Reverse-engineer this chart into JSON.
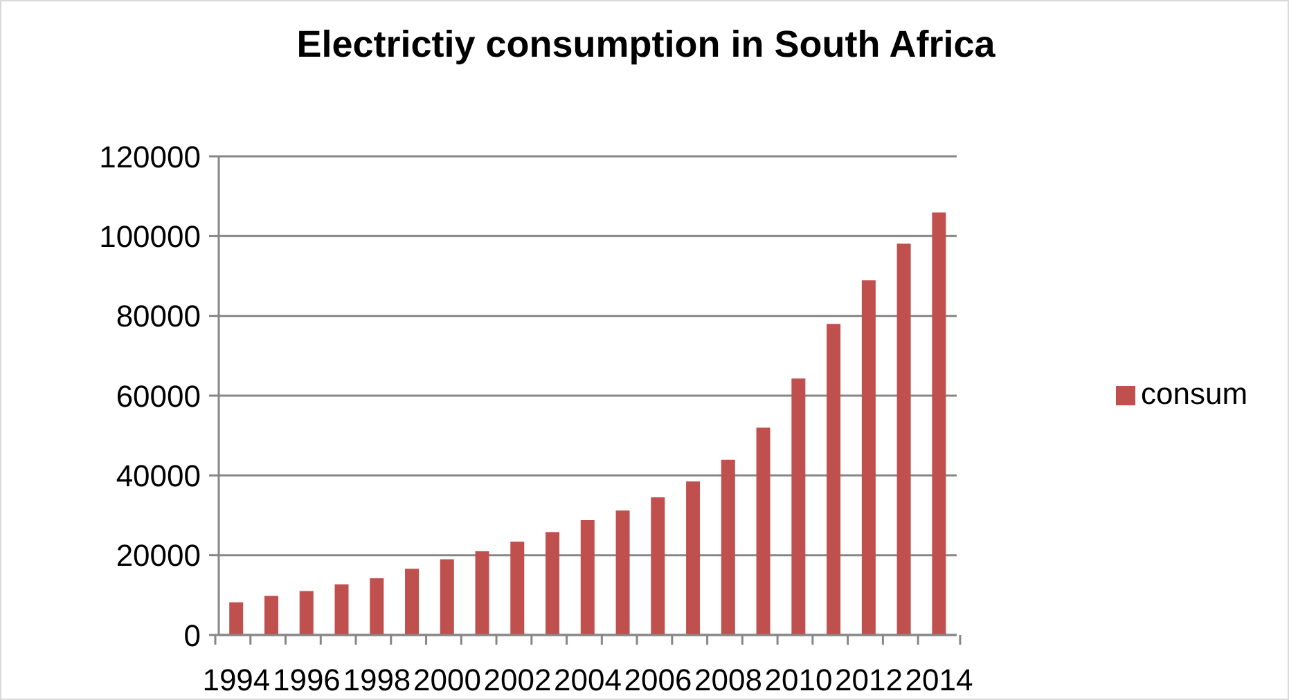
{
  "chart_data": {
    "type": "bar",
    "title": "Electrictiy consumption in South Africa",
    "categories": [
      "1994",
      null,
      "1996",
      null,
      "1998",
      null,
      "2000",
      null,
      "2002",
      null,
      "2004",
      null,
      "2006",
      null,
      "2008",
      null,
      "2010",
      null,
      "2012",
      null,
      "2014"
    ],
    "series": [
      {
        "name": "consum",
        "color": "#c0504d",
        "values": [
          8200,
          9800,
          11000,
          12700,
          14200,
          16600,
          19000,
          21000,
          23400,
          25800,
          28800,
          31200,
          34500,
          38500,
          43900,
          52000,
          64300,
          78000,
          88900,
          98100,
          105900
        ]
      }
    ],
    "ylim": [
      0,
      120000
    ],
    "yticks": [
      0,
      20000,
      40000,
      60000,
      80000,
      100000,
      120000
    ],
    "grid": "y",
    "legend": "right"
  }
}
